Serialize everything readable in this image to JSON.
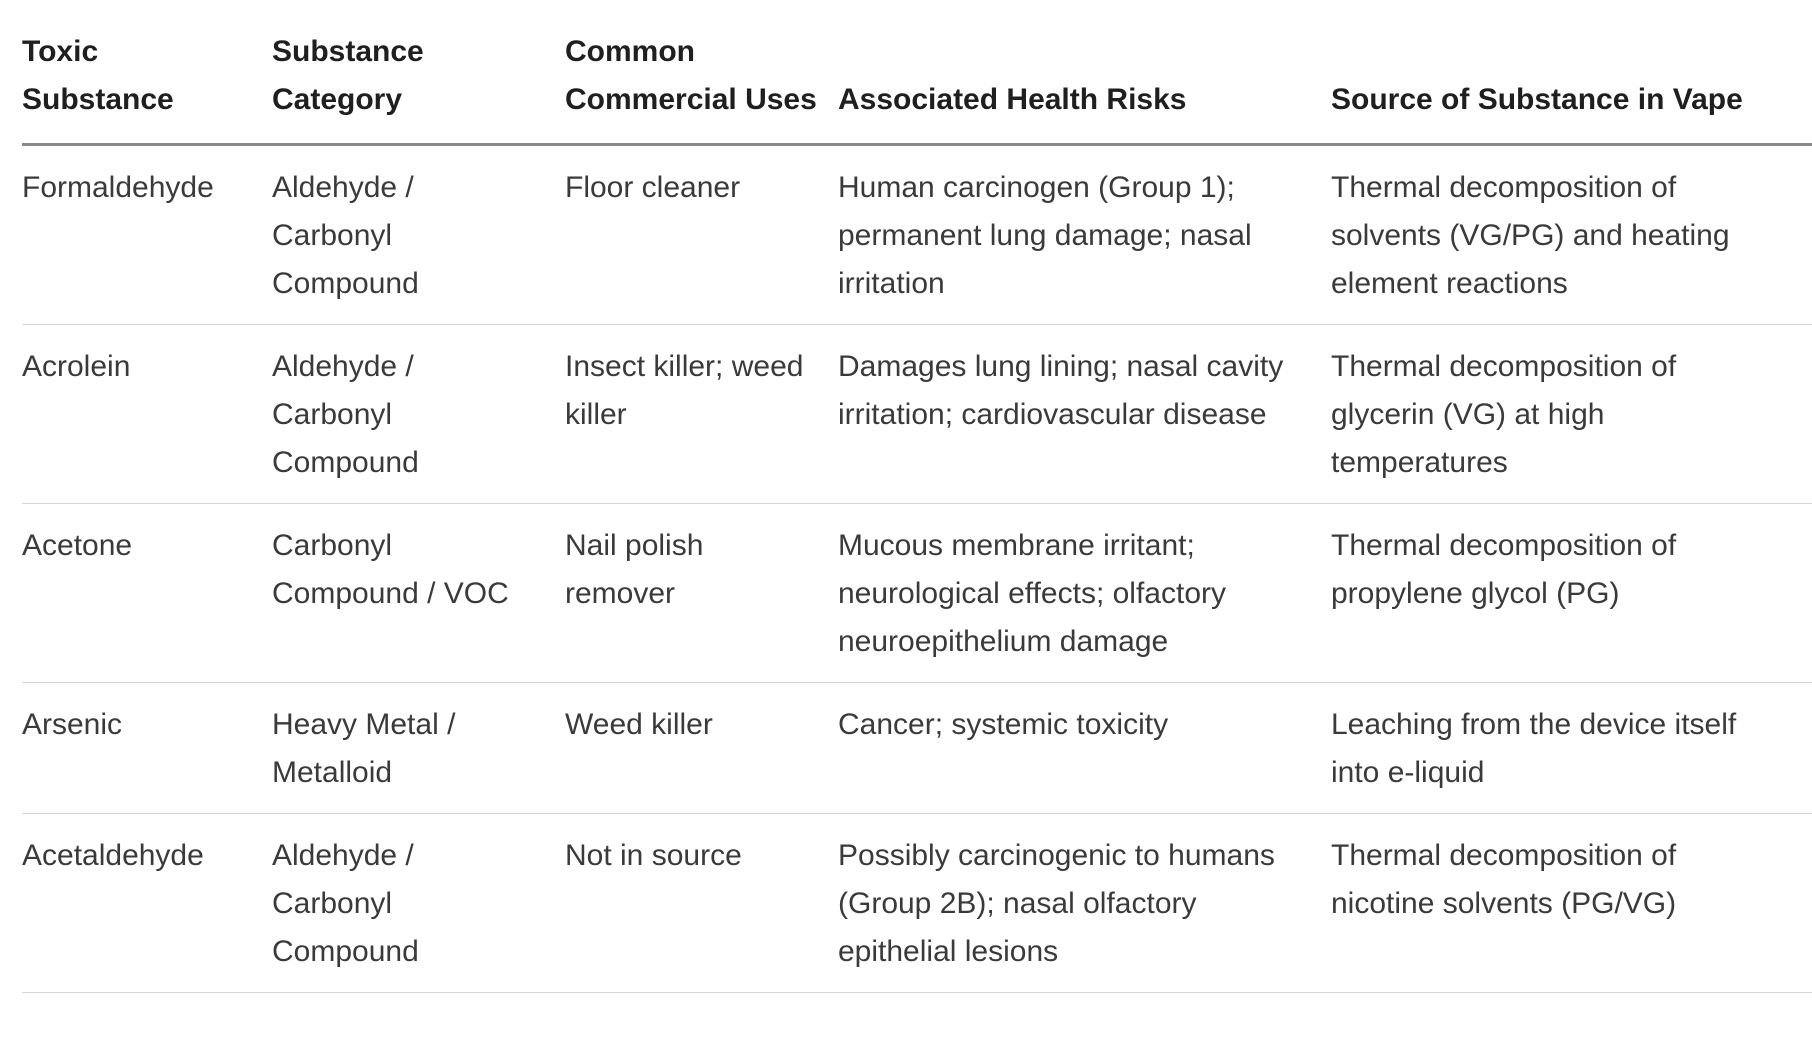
{
  "table": {
    "headers": [
      "Toxic Substance",
      "Substance Category",
      "Common Commercial Uses",
      "Associated Health Risks",
      "Source of Substance in Vape"
    ],
    "rows": [
      [
        "Formaldehyde",
        "Aldehyde / Carbonyl Compound",
        "Floor cleaner",
        "Human carcinogen (Group 1); permanent lung damage; nasal irritation",
        "Thermal decomposition of solvents (VG/PG) and heating element reactions"
      ],
      [
        "Acrolein",
        "Aldehyde / Carbonyl Compound",
        "Insect killer; weed killer",
        "Damages lung lining; nasal cavity irritation; cardiovascular disease",
        "Thermal decomposition of glycerin (VG) at high temperatures"
      ],
      [
        "Acetone",
        "Carbonyl Compound / VOC",
        "Nail polish remover",
        "Mucous membrane irritant; neurological effects; olfactory neuroepithelium damage",
        "Thermal decomposition of propylene glycol (PG)"
      ],
      [
        "Arsenic",
        "Heavy Metal / Metalloid",
        "Weed killer",
        "Cancer; systemic toxicity",
        "Leaching from the device itself into e-liquid"
      ],
      [
        "Acetaldehyde",
        "Aldehyde / Carbonyl Compound",
        "Not in source",
        "Possibly carcinogenic to humans (Group 2B); nasal olfactory epithelial lesions",
        "Thermal decomposition of nicotine solvents (PG/VG)"
      ]
    ]
  }
}
